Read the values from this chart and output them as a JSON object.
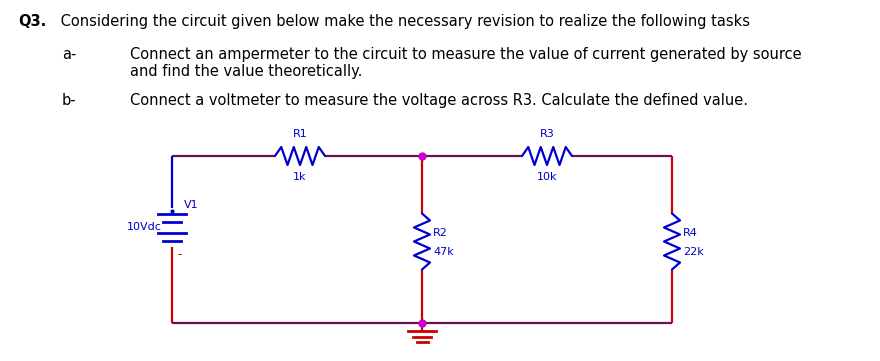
{
  "title_bold": "Q3.",
  "title_rest": " Considering the circuit given below make the necessary revision to realize the following tasks",
  "item_a_label": "a-",
  "item_a_text": "Connect an ampermeter to the circuit to measure the value of current generated by source\nand find the value theoretically.",
  "item_b_label": "b-",
  "item_b_text": "Connect a voltmeter to measure the voltage across R3. Calculate the defined value.",
  "bg_color": "#ffffff",
  "text_color": "#000000",
  "wire_color": "#6B1050",
  "active_color": "#cc0000",
  "resistor_color": "#0000cc",
  "label_color": "#0000cc",
  "battery_color": "#0000cc",
  "junction_color": "#cc00cc",
  "V1_label": "V1",
  "V1_value": "10Vdc",
  "R1_label": "R1",
  "R1_value": "1k",
  "R2_label": "R2",
  "R2_value": "47k",
  "R3_label": "R3",
  "R3_value": "10k",
  "R4_label": "R4",
  "R4_value": "22k",
  "fig_w": 8.8,
  "fig_h": 3.61,
  "dpi": 100
}
